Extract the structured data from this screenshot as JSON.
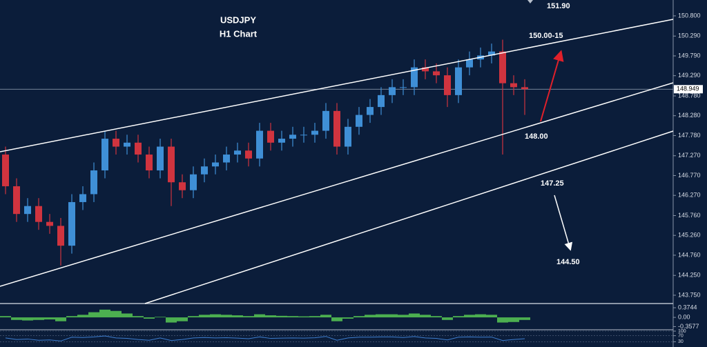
{
  "chart_data": {
    "type": "candlestick",
    "title": "USDJPY",
    "subtitle": "H1 Chart",
    "open": [
      147.3,
      146.5,
      145.8,
      146.0,
      145.6,
      145.5,
      145.0,
      146.1,
      146.3,
      146.9,
      147.7,
      147.5,
      147.6,
      147.3,
      146.9,
      147.5,
      146.6,
      146.4,
      146.8,
      147.0,
      147.1,
      147.3,
      147.4,
      147.2,
      147.9,
      147.6,
      147.7,
      147.8,
      147.8,
      147.9,
      148.4,
      147.5,
      148.0,
      148.3,
      148.5,
      148.8,
      149.0,
      149.0,
      149.5,
      149.4,
      149.3,
      148.8,
      149.5,
      149.7,
      149.8,
      149.9,
      149.1,
      149.0
    ],
    "high": [
      147.5,
      146.7,
      146.2,
      146.2,
      145.8,
      145.7,
      146.3,
      146.5,
      147.1,
      147.9,
      147.9,
      147.8,
      147.8,
      147.5,
      147.7,
      147.7,
      146.8,
      147.0,
      147.2,
      147.3,
      147.5,
      147.6,
      147.6,
      148.1,
      148.1,
      147.9,
      148.0,
      148.0,
      148.1,
      148.6,
      148.6,
      148.2,
      148.5,
      148.7,
      149.0,
      149.2,
      149.2,
      149.7,
      149.7,
      149.6,
      149.5,
      149.7,
      149.9,
      150.0,
      150.1,
      150.2,
      149.3,
      149.2
    ],
    "low": [
      146.3,
      145.6,
      145.6,
      145.4,
      145.3,
      144.5,
      144.8,
      145.9,
      146.1,
      146.7,
      147.3,
      147.3,
      147.1,
      146.7,
      146.7,
      146.0,
      146.2,
      146.2,
      146.6,
      146.8,
      146.9,
      147.1,
      147.0,
      147.0,
      147.4,
      147.4,
      147.5,
      147.6,
      147.6,
      147.7,
      147.3,
      147.3,
      147.8,
      148.1,
      148.3,
      148.6,
      148.8,
      148.8,
      149.2,
      149.1,
      148.5,
      148.6,
      149.3,
      149.5,
      149.6,
      147.3,
      148.8,
      148.3
    ],
    "close": [
      146.5,
      145.8,
      146.0,
      145.6,
      145.5,
      145.0,
      146.1,
      146.3,
      146.9,
      147.7,
      147.5,
      147.6,
      147.3,
      146.9,
      147.5,
      146.6,
      146.4,
      146.8,
      147.0,
      147.1,
      147.3,
      147.4,
      147.2,
      147.9,
      147.6,
      147.7,
      147.8,
      147.8,
      147.9,
      148.4,
      147.5,
      148.0,
      148.3,
      148.5,
      148.8,
      149.0,
      149.0,
      149.5,
      149.4,
      149.3,
      148.8,
      149.5,
      149.7,
      149.8,
      149.9,
      149.1,
      149.0,
      148.95
    ],
    "up_color": "#3f8fd6",
    "down_color": "#d0343f",
    "ylim": [
      143.54,
      151.2
    ],
    "yticks": [
      {
        "value": 150.8,
        "label": "150.800"
      },
      {
        "value": 150.29,
        "label": "150.290"
      },
      {
        "value": 149.79,
        "label": "149.790"
      },
      {
        "value": 149.29,
        "label": "149.290"
      },
      {
        "value": 148.78,
        "label": "148.780"
      },
      {
        "value": 148.28,
        "label": "148.280"
      },
      {
        "value": 147.78,
        "label": "147.780"
      },
      {
        "value": 147.27,
        "label": "147.270"
      },
      {
        "value": 146.77,
        "label": "146.770"
      },
      {
        "value": 146.27,
        "label": "146.270"
      },
      {
        "value": 145.76,
        "label": "145.760"
      },
      {
        "value": 145.26,
        "label": "145.260"
      },
      {
        "value": 144.76,
        "label": "144.760"
      },
      {
        "value": 144.25,
        "label": "144.250"
      },
      {
        "value": 143.75,
        "label": "143.750"
      }
    ],
    "last_price": 148.949,
    "annotations": [
      "151.90",
      "150.00-15",
      "148.00",
      "147.25",
      "144.50"
    ],
    "macd": {
      "values": [
        0.05,
        -0.1,
        -0.12,
        -0.1,
        -0.08,
        -0.15,
        0.05,
        0.1,
        0.2,
        0.3,
        0.25,
        0.15,
        0.05,
        -0.05,
        0.02,
        -0.2,
        -0.15,
        0.05,
        0.1,
        0.12,
        0.1,
        0.08,
        0.05,
        0.12,
        0.08,
        0.06,
        0.05,
        0.04,
        0.05,
        0.1,
        -0.15,
        -0.05,
        0.05,
        0.1,
        0.12,
        0.12,
        0.1,
        0.15,
        0.1,
        0.05,
        -0.1,
        0.05,
        0.1,
        0.12,
        0.1,
        -0.2,
        -0.18,
        -0.1
      ],
      "color": "#4caf50",
      "ylim": [
        -0.48,
        0.51
      ],
      "yticks": [
        0.3744,
        {
          "value": 0,
          "label": "0.00"
        },
        -0.3577
      ]
    },
    "rsi": {
      "values": [
        55,
        45,
        48,
        40,
        42,
        35,
        60,
        58,
        62,
        68,
        55,
        52,
        45,
        40,
        55,
        38,
        45,
        55,
        58,
        55,
        57,
        54,
        50,
        62,
        52,
        54,
        55,
        54,
        56,
        65,
        40,
        55,
        60,
        60,
        62,
        62,
        58,
        64,
        55,
        52,
        42,
        60,
        62,
        60,
        61,
        38,
        45,
        50
      ],
      "color": "#3f7fd0",
      "ylim": [
        0,
        100
      ],
      "yticks": [
        100,
        70,
        30
      ]
    }
  }
}
